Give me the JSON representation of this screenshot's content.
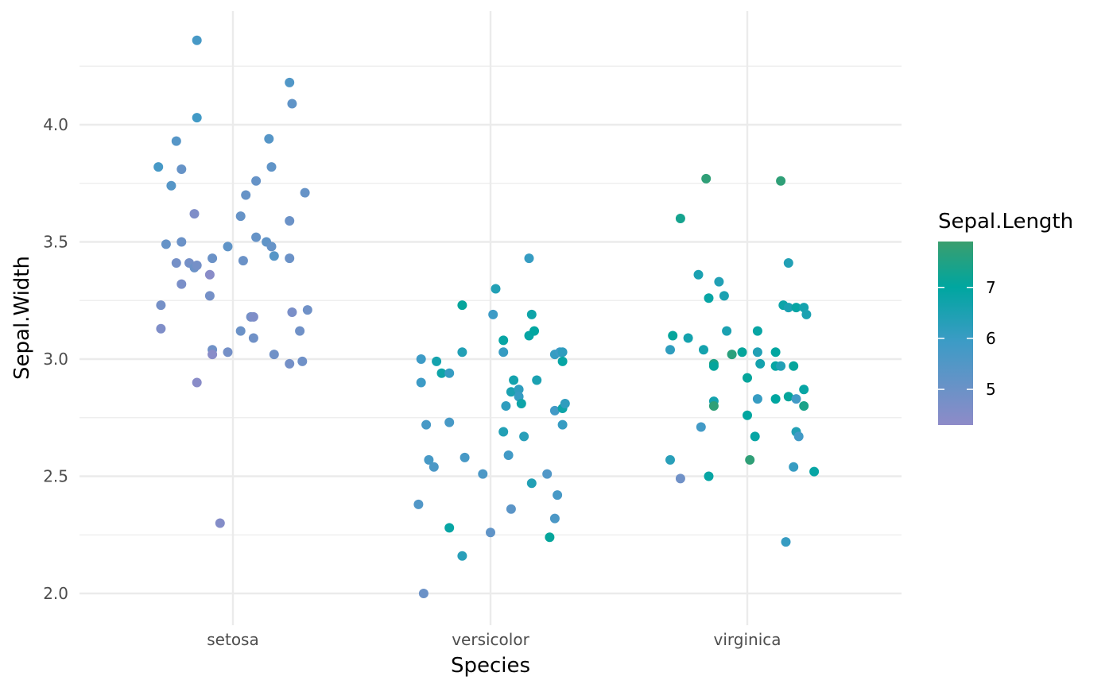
{
  "chart_data": {
    "type": "scatter",
    "title": "",
    "xlabel": "Species",
    "ylabel": "Sepal.Width",
    "categories": [
      "setosa",
      "versicolor",
      "virginica"
    ],
    "ylim": [
      1.87,
      4.43
    ],
    "yticks": [
      "2.0",
      "2.5",
      "3.0",
      "3.5",
      "4.0"
    ],
    "grid": true,
    "legend": {
      "title": "Sepal.Length",
      "placement": "right",
      "ticks": [
        "5",
        "6",
        "7"
      ],
      "range": [
        4.3,
        7.9
      ],
      "colors": {
        "low": "#8E8BC8",
        "mid": "#3D9BC6",
        "high_mid": "#00A6A0",
        "high": "#3A9E6E"
      }
    },
    "series": [
      {
        "category": "setosa",
        "points": [
          {
            "x": -0.14,
            "y": 4.36,
            "c": 5.7
          },
          {
            "x": -0.14,
            "y": 4.03,
            "c": 5.8
          },
          {
            "x": -0.22,
            "y": 3.93,
            "c": 5.4
          },
          {
            "x": -0.2,
            "y": 3.81,
            "c": 5.1
          },
          {
            "x": -0.29,
            "y": 3.82,
            "c": 5.7
          },
          {
            "x": -0.24,
            "y": 3.74,
            "c": 5.4
          },
          {
            "x": -0.15,
            "y": 3.62,
            "c": 4.6
          },
          {
            "x": -0.26,
            "y": 3.49,
            "c": 5.1
          },
          {
            "x": -0.2,
            "y": 3.5,
            "c": 5.0
          },
          {
            "x": -0.22,
            "y": 3.41,
            "c": 4.8
          },
          {
            "x": -0.17,
            "y": 3.41,
            "c": 4.8
          },
          {
            "x": -0.15,
            "y": 3.39,
            "c": 5.0
          },
          {
            "x": -0.14,
            "y": 3.4,
            "c": 4.8
          },
          {
            "x": -0.2,
            "y": 3.32,
            "c": 4.7
          },
          {
            "x": -0.09,
            "y": 3.36,
            "c": 4.4
          },
          {
            "x": -0.08,
            "y": 3.43,
            "c": 5.0
          },
          {
            "x": -0.09,
            "y": 3.27,
            "c": 4.8
          },
          {
            "x": -0.28,
            "y": 3.23,
            "c": 4.8
          },
          {
            "x": -0.28,
            "y": 3.13,
            "c": 4.6
          },
          {
            "x": -0.08,
            "y": 3.04,
            "c": 4.9
          },
          {
            "x": -0.08,
            "y": 3.02,
            "c": 4.4
          },
          {
            "x": -0.02,
            "y": 3.03,
            "c": 4.8
          },
          {
            "x": -0.14,
            "y": 2.9,
            "c": 4.4
          },
          {
            "x": -0.05,
            "y": 2.3,
            "c": 4.5
          },
          {
            "x": 0.03,
            "y": 3.61,
            "c": 5.1
          },
          {
            "x": 0.05,
            "y": 3.7,
            "c": 5.1
          },
          {
            "x": 0.09,
            "y": 3.76,
            "c": 5.1
          },
          {
            "x": 0.14,
            "y": 3.94,
            "c": 5.4
          },
          {
            "x": 0.15,
            "y": 3.82,
            "c": 5.2
          },
          {
            "x": 0.22,
            "y": 4.18,
            "c": 5.5
          },
          {
            "x": 0.23,
            "y": 4.09,
            "c": 5.2
          },
          {
            "x": 0.28,
            "y": 3.71,
            "c": 5.1
          },
          {
            "x": 0.22,
            "y": 3.59,
            "c": 5.0
          },
          {
            "x": -0.02,
            "y": 3.48,
            "c": 5.2
          },
          {
            "x": 0.09,
            "y": 3.52,
            "c": 5.1
          },
          {
            "x": 0.13,
            "y": 3.5,
            "c": 5.2
          },
          {
            "x": 0.15,
            "y": 3.48,
            "c": 5.1
          },
          {
            "x": 0.16,
            "y": 3.44,
            "c": 5.4
          },
          {
            "x": 0.22,
            "y": 3.43,
            "c": 5.0
          },
          {
            "x": 0.04,
            "y": 3.42,
            "c": 5.0
          },
          {
            "x": 0.03,
            "y": 3.12,
            "c": 5.0
          },
          {
            "x": 0.07,
            "y": 3.18,
            "c": 4.8
          },
          {
            "x": 0.08,
            "y": 3.18,
            "c": 4.6
          },
          {
            "x": 0.08,
            "y": 3.09,
            "c": 4.9
          },
          {
            "x": 0.23,
            "y": 3.2,
            "c": 4.7
          },
          {
            "x": 0.29,
            "y": 3.21,
            "c": 4.9
          },
          {
            "x": 0.26,
            "y": 3.12,
            "c": 4.9
          },
          {
            "x": 0.16,
            "y": 3.02,
            "c": 4.9
          },
          {
            "x": 0.22,
            "y": 2.98,
            "c": 4.8
          },
          {
            "x": 0.27,
            "y": 2.99,
            "c": 4.9
          }
        ]
      },
      {
        "category": "versicolor",
        "points": [
          {
            "x": -0.27,
            "y": 3.0,
            "c": 5.9
          },
          {
            "x": -0.27,
            "y": 2.9,
            "c": 5.9
          },
          {
            "x": -0.21,
            "y": 2.99,
            "c": 6.5
          },
          {
            "x": -0.19,
            "y": 2.94,
            "c": 6.6
          },
          {
            "x": -0.16,
            "y": 2.94,
            "c": 6.0
          },
          {
            "x": -0.11,
            "y": 3.23,
            "c": 6.9
          },
          {
            "x": -0.11,
            "y": 3.03,
            "c": 6.3
          },
          {
            "x": 0.02,
            "y": 3.3,
            "c": 6.3
          },
          {
            "x": 0.01,
            "y": 3.19,
            "c": 5.9
          },
          {
            "x": -0.25,
            "y": 2.72,
            "c": 5.7
          },
          {
            "x": -0.16,
            "y": 2.73,
            "c": 5.7
          },
          {
            "x": -0.24,
            "y": 2.57,
            "c": 5.7
          },
          {
            "x": -0.22,
            "y": 2.54,
            "c": 5.6
          },
          {
            "x": -0.1,
            "y": 2.58,
            "c": 5.7
          },
          {
            "x": -0.28,
            "y": 2.38,
            "c": 5.5
          },
          {
            "x": -0.16,
            "y": 2.28,
            "c": 6.7
          },
          {
            "x": -0.11,
            "y": 2.16,
            "c": 6.2
          },
          {
            "x": -0.26,
            "y": 2.0,
            "c": 5.0
          },
          {
            "x": -0.03,
            "y": 2.51,
            "c": 5.6
          },
          {
            "x": 0.0,
            "y": 2.26,
            "c": 5.2
          },
          {
            "x": 0.05,
            "y": 3.08,
            "c": 6.7
          },
          {
            "x": 0.05,
            "y": 3.03,
            "c": 6.0
          },
          {
            "x": 0.06,
            "y": 2.8,
            "c": 6.1
          },
          {
            "x": 0.05,
            "y": 2.69,
            "c": 6.3
          },
          {
            "x": 0.07,
            "y": 2.59,
            "c": 5.8
          },
          {
            "x": 0.08,
            "y": 2.36,
            "c": 5.3
          },
          {
            "x": 0.08,
            "y": 2.86,
            "c": 6.4
          },
          {
            "x": 0.09,
            "y": 2.91,
            "c": 6.5
          },
          {
            "x": 0.11,
            "y": 2.87,
            "c": 6.1
          },
          {
            "x": 0.11,
            "y": 2.84,
            "c": 6.0
          },
          {
            "x": 0.12,
            "y": 2.81,
            "c": 6.6
          },
          {
            "x": 0.13,
            "y": 2.67,
            "c": 6.2
          },
          {
            "x": 0.15,
            "y": 3.43,
            "c": 6.0
          },
          {
            "x": 0.15,
            "y": 3.1,
            "c": 6.7
          },
          {
            "x": 0.16,
            "y": 3.19,
            "c": 6.6
          },
          {
            "x": 0.17,
            "y": 3.12,
            "c": 6.8
          },
          {
            "x": 0.18,
            "y": 2.91,
            "c": 6.4
          },
          {
            "x": 0.16,
            "y": 2.47,
            "c": 6.3
          },
          {
            "x": 0.22,
            "y": 2.51,
            "c": 5.5
          },
          {
            "x": 0.23,
            "y": 2.24,
            "c": 6.9
          },
          {
            "x": 0.25,
            "y": 3.02,
            "c": 6.0
          },
          {
            "x": 0.27,
            "y": 3.03,
            "c": 5.9
          },
          {
            "x": 0.28,
            "y": 3.03,
            "c": 6.1
          },
          {
            "x": 0.28,
            "y": 2.99,
            "c": 6.7
          },
          {
            "x": 0.25,
            "y": 2.78,
            "c": 5.8
          },
          {
            "x": 0.28,
            "y": 2.79,
            "c": 6.6
          },
          {
            "x": 0.29,
            "y": 2.81,
            "c": 6.1
          },
          {
            "x": 0.28,
            "y": 2.72,
            "c": 6.0
          },
          {
            "x": 0.26,
            "y": 2.42,
            "c": 5.7
          },
          {
            "x": 0.25,
            "y": 2.32,
            "c": 5.6
          }
        ]
      },
      {
        "category": "virginica",
        "points": [
          {
            "x": -0.16,
            "y": 3.77,
            "c": 7.7
          },
          {
            "x": 0.13,
            "y": 3.76,
            "c": 7.7
          },
          {
            "x": -0.26,
            "y": 3.6,
            "c": 7.2
          },
          {
            "x": -0.19,
            "y": 3.36,
            "c": 6.4
          },
          {
            "x": -0.11,
            "y": 3.33,
            "c": 6.3
          },
          {
            "x": -0.15,
            "y": 3.26,
            "c": 6.7
          },
          {
            "x": -0.09,
            "y": 3.27,
            "c": 6.4
          },
          {
            "x": 0.16,
            "y": 3.41,
            "c": 6.3
          },
          {
            "x": -0.29,
            "y": 3.1,
            "c": 6.9
          },
          {
            "x": -0.23,
            "y": 3.09,
            "c": 6.5
          },
          {
            "x": -0.08,
            "y": 3.12,
            "c": 6.4
          },
          {
            "x": 0.04,
            "y": 3.12,
            "c": 6.7
          },
          {
            "x": -0.3,
            "y": 3.04,
            "c": 6.1
          },
          {
            "x": -0.17,
            "y": 3.04,
            "c": 6.5
          },
          {
            "x": -0.13,
            "y": 2.98,
            "c": 7.4
          },
          {
            "x": -0.13,
            "y": 2.97,
            "c": 6.9
          },
          {
            "x": -0.06,
            "y": 3.02,
            "c": 7.6
          },
          {
            "x": -0.02,
            "y": 3.03,
            "c": 6.9
          },
          {
            "x": 0.04,
            "y": 3.03,
            "c": 6.3
          },
          {
            "x": 0.05,
            "y": 2.98,
            "c": 6.5
          },
          {
            "x": 0.11,
            "y": 3.03,
            "c": 6.8
          },
          {
            "x": 0.11,
            "y": 2.97,
            "c": 6.7
          },
          {
            "x": 0.18,
            "y": 2.97,
            "c": 6.9
          },
          {
            "x": 0.14,
            "y": 3.23,
            "c": 6.6
          },
          {
            "x": 0.16,
            "y": 3.22,
            "c": 6.4
          },
          {
            "x": 0.19,
            "y": 3.22,
            "c": 6.7
          },
          {
            "x": 0.22,
            "y": 3.22,
            "c": 6.5
          },
          {
            "x": 0.23,
            "y": 3.19,
            "c": 6.4
          },
          {
            "x": 0.0,
            "y": 2.92,
            "c": 6.9
          },
          {
            "x": -0.13,
            "y": 2.82,
            "c": 6.5
          },
          {
            "x": -0.13,
            "y": 2.8,
            "c": 7.7
          },
          {
            "x": 0.04,
            "y": 2.83,
            "c": 6.0
          },
          {
            "x": 0.11,
            "y": 2.83,
            "c": 6.8
          },
          {
            "x": 0.16,
            "y": 2.84,
            "c": 6.9
          },
          {
            "x": 0.22,
            "y": 2.87,
            "c": 6.7
          },
          {
            "x": 0.22,
            "y": 2.8,
            "c": 7.3
          },
          {
            "x": 0.0,
            "y": 2.76,
            "c": 6.8
          },
          {
            "x": -0.18,
            "y": 2.71,
            "c": 5.8
          },
          {
            "x": 0.03,
            "y": 2.67,
            "c": 6.7
          },
          {
            "x": 0.19,
            "y": 2.69,
            "c": 6.3
          },
          {
            "x": 0.2,
            "y": 2.67,
            "c": 5.8
          },
          {
            "x": 0.01,
            "y": 2.57,
            "c": 7.7
          },
          {
            "x": -0.3,
            "y": 2.57,
            "c": 6.2
          },
          {
            "x": -0.26,
            "y": 2.49,
            "c": 4.9
          },
          {
            "x": -0.15,
            "y": 2.5,
            "c": 6.7
          },
          {
            "x": 0.18,
            "y": 2.54,
            "c": 6.0
          },
          {
            "x": 0.26,
            "y": 2.52,
            "c": 6.7
          },
          {
            "x": 0.15,
            "y": 2.22,
            "c": 6.0
          },
          {
            "x": 0.19,
            "y": 2.83,
            "c": 5.8
          },
          {
            "x": 0.13,
            "y": 2.97,
            "c": 6.3
          }
        ]
      }
    ]
  }
}
